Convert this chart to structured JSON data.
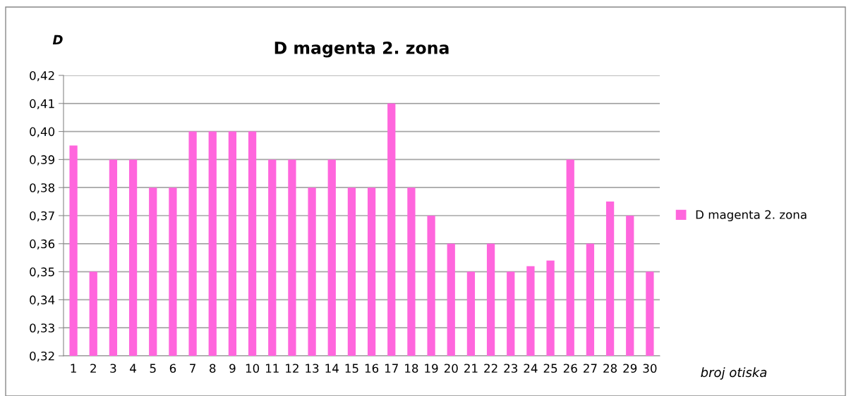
{
  "chart_data": {
    "type": "bar",
    "title": "D magenta 2. zona",
    "ylabel": "D",
    "xlabel": "broj otiska",
    "categories": [
      "1",
      "2",
      "3",
      "4",
      "5",
      "6",
      "7",
      "8",
      "9",
      "10",
      "11",
      "12",
      "13",
      "14",
      "15",
      "16",
      "17",
      "18",
      "19",
      "20",
      "21",
      "22",
      "23",
      "24",
      "25",
      "26",
      "27",
      "28",
      "29",
      "30"
    ],
    "series": [
      {
        "name": "D magenta 2. zona",
        "color": "#ff66dd",
        "values": [
          0.395,
          0.35,
          0.39,
          0.39,
          0.38,
          0.38,
          0.4,
          0.4,
          0.4,
          0.4,
          0.39,
          0.39,
          0.38,
          0.39,
          0.38,
          0.38,
          0.41,
          0.38,
          0.37,
          0.36,
          0.35,
          0.36,
          0.35,
          0.352,
          0.354,
          0.39,
          0.36,
          0.375,
          0.37,
          0.35
        ]
      }
    ],
    "ylim": [
      0.32,
      0.42
    ],
    "yticks": [
      {
        "value": 0.32,
        "label": "0,32"
      },
      {
        "value": 0.33,
        "label": "0,33"
      },
      {
        "value": 0.34,
        "label": "0,34"
      },
      {
        "value": 0.35,
        "label": "0,35"
      },
      {
        "value": 0.36,
        "label": "0,36"
      },
      {
        "value": 0.37,
        "label": "0,37"
      },
      {
        "value": 0.38,
        "label": "0,38"
      },
      {
        "value": 0.39,
        "label": "0,39"
      },
      {
        "value": 0.4,
        "label": "0,40"
      },
      {
        "value": 0.41,
        "label": "0,41"
      },
      {
        "value": 0.42,
        "label": "0,42"
      }
    ],
    "grid": "y",
    "legend": "right"
  }
}
